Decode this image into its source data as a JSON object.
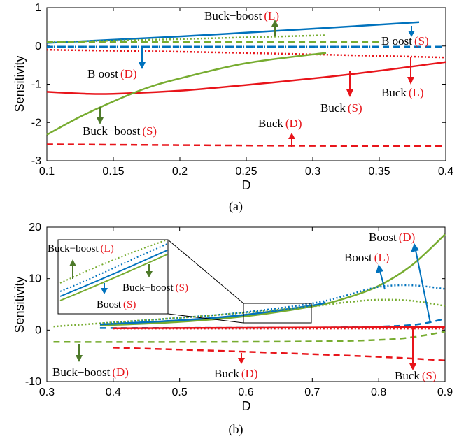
{
  "colors": {
    "blue": "#0072BD",
    "red": "#E8141A",
    "green": "#77AC30",
    "arrow_green": "#4E7A2A"
  },
  "chart_data": [
    {
      "id": "a",
      "type": "line",
      "caption": "(a)",
      "xlabel": "D",
      "ylabel": "Sensitivity",
      "xlim": [
        0.1,
        0.4
      ],
      "ylim": [
        -3,
        1
      ],
      "xticks": [
        "0.1",
        "0.15",
        "0.2",
        "0.25",
        "0.3",
        "0.35",
        "0.4"
      ],
      "xtick_values": [
        0.1,
        0.15,
        0.2,
        0.25,
        0.3,
        0.35,
        0.4
      ],
      "yticks": [
        "1",
        "0",
        "-1",
        "-2",
        "-3"
      ],
      "ytick_values": [
        1,
        0,
        -1,
        -2,
        -3
      ],
      "series": [
        {
          "converter": "Boost",
          "param": "L",
          "color": "blue",
          "style": "solid",
          "x": [
            0.1,
            0.2,
            0.3,
            0.38
          ],
          "y": [
            0.08,
            0.25,
            0.45,
            0.62
          ]
        },
        {
          "converter": "Boost",
          "param": "S",
          "color": "blue",
          "style": "dashed",
          "x": [
            0.1,
            0.2,
            0.3,
            0.4
          ],
          "y": [
            -0.02,
            -0.02,
            -0.02,
            -0.02
          ]
        },
        {
          "converter": "Boost",
          "param": "D",
          "color": "blue",
          "style": "dotted",
          "x": [
            0.1,
            0.35
          ],
          "y": [
            -0.02,
            -0.02
          ]
        },
        {
          "converter": "Buck",
          "param": "L",
          "color": "red",
          "style": "solid",
          "x": [
            0.1,
            0.13,
            0.15,
            0.2,
            0.25,
            0.3,
            0.35,
            0.4
          ],
          "y": [
            -1.2,
            -1.25,
            -1.25,
            -1.17,
            -1.02,
            -0.85,
            -0.65,
            -0.42
          ]
        },
        {
          "converter": "Buck",
          "param": "S",
          "color": "red",
          "style": "dotted",
          "x": [
            0.1,
            0.2,
            0.3,
            0.4
          ],
          "y": [
            -0.1,
            -0.15,
            -0.22,
            -0.3
          ]
        },
        {
          "converter": "Buck",
          "param": "D",
          "color": "red",
          "style": "dashed",
          "x": [
            0.1,
            0.2,
            0.3,
            0.4
          ],
          "y": [
            -2.57,
            -2.59,
            -2.61,
            -2.62
          ]
        },
        {
          "converter": "Buck-boost",
          "param": "L",
          "color": "green",
          "style": "dotted",
          "x": [
            0.1,
            0.2,
            0.31
          ],
          "y": [
            0.1,
            0.18,
            0.28
          ]
        },
        {
          "converter": "Buck-boost",
          "param": "S",
          "color": "green",
          "style": "solid",
          "x": [
            0.1,
            0.125,
            0.15,
            0.175,
            0.2,
            0.25,
            0.31
          ],
          "y": [
            -2.32,
            -1.85,
            -1.45,
            -1.1,
            -0.85,
            -0.45,
            -0.18
          ]
        },
        {
          "converter": "Buck-boost",
          "param": "D",
          "color": "green",
          "style": "dashed",
          "x": [
            0.1,
            0.35
          ],
          "y": [
            0.1,
            0.1
          ]
        }
      ],
      "annotations": [
        {
          "converter": "Buck−boost",
          "param": "(L)"
        },
        {
          "converter": "B oost",
          "param": "(S)"
        },
        {
          "converter": "B oost",
          "param": "(D)"
        },
        {
          "converter": "Buck",
          "param": "(L)"
        },
        {
          "converter": "Buck",
          "param": "(S)"
        },
        {
          "converter": "Buck−boost",
          "param": "(S)"
        },
        {
          "converter": "Buck",
          "param": "(D)"
        }
      ]
    },
    {
      "id": "b",
      "type": "line",
      "caption": "(b)",
      "xlabel": "D",
      "ylabel": "Sensitivity",
      "xlim": [
        0.3,
        0.9
      ],
      "ylim": [
        -10,
        20
      ],
      "xticks": [
        "0.3",
        "0.4",
        "0.5",
        "0.6",
        "0.7",
        "0.8",
        "0.9"
      ],
      "xtick_values": [
        0.3,
        0.4,
        0.5,
        0.6,
        0.7,
        0.8,
        0.9
      ],
      "yticks": [
        "20",
        "10",
        "0",
        "-10"
      ],
      "ytick_values": [
        20,
        10,
        0,
        -10
      ],
      "series": [
        {
          "converter": "Buck-boost",
          "param": "S",
          "color": "green",
          "style": "solid",
          "x": [
            0.38,
            0.5,
            0.6,
            0.7,
            0.75,
            0.8,
            0.85,
            0.9
          ],
          "y": [
            0.9,
            1.6,
            2.7,
            4.6,
            6.2,
            8.6,
            12.6,
            18.6
          ]
        },
        {
          "converter": "Boost",
          "param": "S",
          "color": "blue",
          "style": "solid",
          "x": [
            0.38,
            0.5,
            0.6,
            0.7,
            0.72
          ],
          "y": [
            1.1,
            1.9,
            3.0,
            4.8,
            5.4
          ]
        },
        {
          "converter": "Boost",
          "param": "L",
          "color": "blue",
          "style": "dotted",
          "x": [
            0.38,
            0.5,
            0.6,
            0.7,
            0.75,
            0.8,
            0.85,
            0.9
          ],
          "y": [
            1.3,
            2.4,
            3.5,
            5.2,
            6.7,
            8.4,
            8.7,
            8.0
          ]
        },
        {
          "converter": "Buck-boost",
          "param": "L",
          "color": "green",
          "style": "dotted",
          "x": [
            0.31,
            0.4,
            0.5,
            0.6,
            0.7,
            0.75,
            0.8,
            0.85,
            0.9
          ],
          "y": [
            0.7,
            1.5,
            2.4,
            3.4,
            4.6,
            5.4,
            5.9,
            5.7,
            4.7
          ]
        },
        {
          "converter": "Boost",
          "param": "D",
          "color": "blue",
          "style": "dashed",
          "x": [
            0.38,
            0.6,
            0.75,
            0.85,
            0.9
          ],
          "y": [
            0.4,
            0.45,
            0.55,
            1.0,
            2.2
          ]
        },
        {
          "converter": "Buck",
          "param": "S",
          "color": "red",
          "style": "solid",
          "x": [
            0.4,
            0.6,
            0.9
          ],
          "y": [
            0.35,
            0.45,
            0.6
          ]
        },
        {
          "converter": "Buck-boost",
          "param": "D",
          "color": "green",
          "style": "dashed",
          "x": [
            0.31,
            0.5,
            0.7,
            0.8,
            0.85,
            0.9
          ],
          "y": [
            -2.3,
            -2.3,
            -2.2,
            -1.9,
            -1.4,
            -0.3
          ]
        },
        {
          "converter": "Buck",
          "param": "D",
          "color": "red",
          "style": "dashed",
          "x": [
            0.4,
            0.6,
            0.8,
            0.9
          ],
          "y": [
            -3.4,
            -4.2,
            -5.2,
            -5.9
          ]
        },
        {
          "converter": "Buck",
          "param": "L",
          "color": "red",
          "style": "dotted",
          "x": [
            0.4,
            0.9
          ],
          "y": [
            0.3,
            0.3
          ]
        }
      ],
      "annotations": [
        {
          "converter": "Boost",
          "param": "(D)"
        },
        {
          "converter": "Boost",
          "param": "(L)"
        },
        {
          "converter": "Buck−boost",
          "param": "(D)"
        },
        {
          "converter": "Buck",
          "param": "(D)"
        },
        {
          "converter": "Buck",
          "param": "(S)"
        }
      ],
      "inset_annotations": [
        {
          "converter": "Buck−boost",
          "param": "(L)"
        },
        {
          "converter": "Buck−boost",
          "param": "(S)"
        },
        {
          "converter": "Boost",
          "param": "(S)"
        }
      ]
    }
  ]
}
